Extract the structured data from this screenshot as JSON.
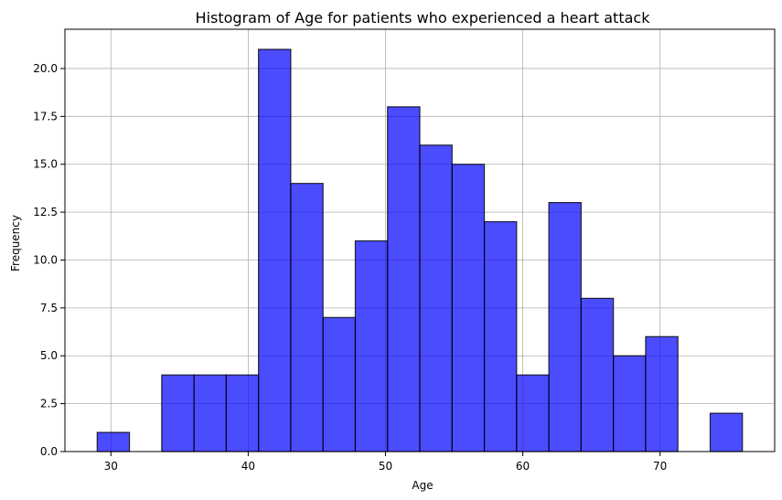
{
  "chart_data": {
    "type": "bar",
    "title": "Histogram of Age for patients who experienced a heart attack",
    "xlabel": "Age",
    "ylabel": "Frequency",
    "bins": [
      {
        "x0": 29.0,
        "x1": 31.35,
        "count": 1
      },
      {
        "x0": 31.35,
        "x1": 33.7,
        "count": 0
      },
      {
        "x0": 33.7,
        "x1": 36.05,
        "count": 4
      },
      {
        "x0": 36.05,
        "x1": 38.4,
        "count": 4
      },
      {
        "x0": 38.4,
        "x1": 40.75,
        "count": 4
      },
      {
        "x0": 40.75,
        "x1": 43.1,
        "count": 21
      },
      {
        "x0": 43.1,
        "x1": 45.45,
        "count": 14
      },
      {
        "x0": 45.45,
        "x1": 47.8,
        "count": 7
      },
      {
        "x0": 47.8,
        "x1": 50.15,
        "count": 11
      },
      {
        "x0": 50.15,
        "x1": 52.5,
        "count": 18
      },
      {
        "x0": 52.5,
        "x1": 54.85,
        "count": 16
      },
      {
        "x0": 54.85,
        "x1": 57.2,
        "count": 15
      },
      {
        "x0": 57.2,
        "x1": 59.55,
        "count": 12
      },
      {
        "x0": 59.55,
        "x1": 61.9,
        "count": 4
      },
      {
        "x0": 61.9,
        "x1": 64.25,
        "count": 13
      },
      {
        "x0": 64.25,
        "x1": 66.6,
        "count": 8
      },
      {
        "x0": 66.6,
        "x1": 68.95,
        "count": 5
      },
      {
        "x0": 68.95,
        "x1": 71.3,
        "count": 6
      },
      {
        "x0": 71.3,
        "x1": 73.65,
        "count": 0
      },
      {
        "x0": 73.65,
        "x1": 76.0,
        "count": 2
      }
    ],
    "xlim": [
      26.65,
      78.35
    ],
    "ylim": [
      0,
      22.05
    ],
    "xticks": [
      30,
      40,
      50,
      60,
      70
    ],
    "xtick_labels": [
      "30",
      "40",
      "50",
      "60",
      "70"
    ],
    "yticks": [
      0,
      2.5,
      5,
      7.5,
      10,
      12.5,
      15,
      17.5,
      20
    ],
    "ytick_labels": [
      "0.0",
      "2.5",
      "5.0",
      "7.5",
      "10.0",
      "12.5",
      "15.0",
      "17.5",
      "20.0"
    ],
    "grid": true,
    "colors": {
      "bar_fill": "#0000ff",
      "bar_opacity": 0.7,
      "bar_edge": "#000000",
      "grid": "#b0b0b0",
      "axis": "#000000"
    }
  }
}
